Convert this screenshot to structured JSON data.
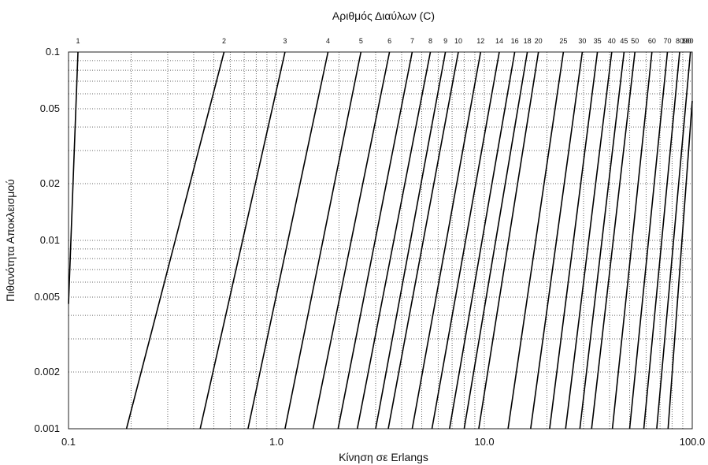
{
  "chart_data": {
    "type": "line",
    "title": "Αριθμός Διαύλων (C)",
    "xlabel": "Κίνηση σε Erlangs",
    "ylabel": "Πιθανότητα Αποκλεισμού",
    "xscale": "log",
    "yscale": "log",
    "xlim": [
      0.1,
      100
    ],
    "ylim": [
      0.001,
      0.1
    ],
    "grid": true,
    "x_ticks": [
      0.1,
      1.0,
      10.0,
      100.0
    ],
    "x_tick_labels": [
      "0.1",
      "1.0",
      "10.0",
      "100.0"
    ],
    "y_ticks": [
      0.1,
      0.05,
      0.02,
      0.01,
      0.005,
      0.002,
      0.001
    ],
    "y_tick_labels": [
      "0.1",
      "0.05",
      "0.02",
      "0.01",
      "0.005",
      "0.002",
      "0.001"
    ],
    "channel_labels": [
      "1",
      "2",
      "3",
      "4",
      "5",
      "6",
      "7",
      "8",
      "9",
      "10",
      "12",
      "14",
      "16",
      "18",
      "20",
      "25",
      "30",
      "35",
      "40",
      "45",
      "50",
      "60",
      "70",
      "80",
      "90",
      "100"
    ],
    "series": [
      {
        "name": "1",
        "x": [
          0.1,
          0.111
        ],
        "y": [
          0.0046,
          0.1
        ]
      },
      {
        "name": "2",
        "x": [
          0.19,
          0.56
        ],
        "y": [
          0.001,
          0.1
        ]
      },
      {
        "name": "3",
        "x": [
          0.43,
          1.1
        ],
        "y": [
          0.001,
          0.1
        ]
      },
      {
        "name": "4",
        "x": [
          0.73,
          1.77
        ],
        "y": [
          0.001,
          0.1
        ]
      },
      {
        "name": "5",
        "x": [
          1.1,
          2.55
        ],
        "y": [
          0.001,
          0.1
        ]
      },
      {
        "name": "6",
        "x": [
          1.5,
          3.5
        ],
        "y": [
          0.001,
          0.1
        ]
      },
      {
        "name": "7",
        "x": [
          1.98,
          4.5
        ],
        "y": [
          0.001,
          0.1
        ]
      },
      {
        "name": "8",
        "x": [
          2.45,
          5.5
        ],
        "y": [
          0.001,
          0.1
        ]
      },
      {
        "name": "9",
        "x": [
          3.0,
          6.5
        ],
        "y": [
          0.001,
          0.1
        ]
      },
      {
        "name": "10",
        "x": [
          3.45,
          7.5
        ],
        "y": [
          0.001,
          0.1
        ]
      },
      {
        "name": "12",
        "x": [
          4.5,
          9.6
        ],
        "y": [
          0.001,
          0.1
        ]
      },
      {
        "name": "14",
        "x": [
          5.6,
          11.8
        ],
        "y": [
          0.001,
          0.1
        ]
      },
      {
        "name": "16",
        "x": [
          6.8,
          14.0
        ],
        "y": [
          0.001,
          0.1
        ]
      },
      {
        "name": "18",
        "x": [
          8.0,
          16.1
        ],
        "y": [
          0.001,
          0.1
        ]
      },
      {
        "name": "20",
        "x": [
          9.4,
          18.2
        ],
        "y": [
          0.001,
          0.1
        ]
      },
      {
        "name": "25",
        "x": [
          13.0,
          24.0
        ],
        "y": [
          0.001,
          0.1
        ]
      },
      {
        "name": "30",
        "x": [
          16.7,
          29.6
        ],
        "y": [
          0.001,
          0.1
        ]
      },
      {
        "name": "35",
        "x": [
          20.6,
          35.0
        ],
        "y": [
          0.001,
          0.1
        ]
      },
      {
        "name": "40",
        "x": [
          24.6,
          41.0
        ],
        "y": [
          0.001,
          0.1
        ]
      },
      {
        "name": "45",
        "x": [
          28.8,
          47.0
        ],
        "y": [
          0.001,
          0.1
        ]
      },
      {
        "name": "50",
        "x": [
          32.8,
          53.0
        ],
        "y": [
          0.001,
          0.1
        ]
      },
      {
        "name": "60",
        "x": [
          41.3,
          64.0
        ],
        "y": [
          0.001,
          0.1
        ]
      },
      {
        "name": "70",
        "x": [
          50.0,
          76.0
        ],
        "y": [
          0.001,
          0.1
        ]
      },
      {
        "name": "80",
        "x": [
          58.5,
          87.0
        ],
        "y": [
          0.001,
          0.1
        ]
      },
      {
        "name": "90",
        "x": [
          67.5,
          98.0
        ],
        "y": [
          0.001,
          0.1
        ]
      },
      {
        "name": "100",
        "x": [
          76.5,
          100.0
        ],
        "y": [
          0.001,
          0.055
        ]
      }
    ]
  }
}
